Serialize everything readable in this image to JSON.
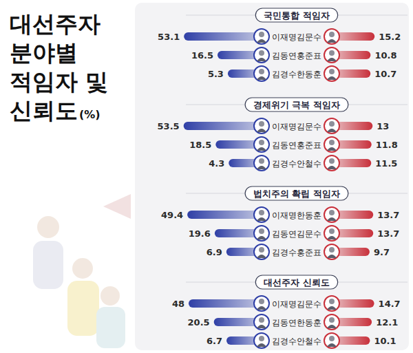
{
  "header": {
    "title_lines": [
      "대선주자",
      "분야별",
      "적임자 및",
      "신뢰도"
    ],
    "unit": "(%)"
  },
  "chart_data": [
    {
      "type": "bar",
      "orientation": "horizontal",
      "title": "국민통합 적임자",
      "data_labels": true,
      "xlim": [
        0,
        60
      ],
      "series": [
        {
          "categories": [
            "이재명",
            "김동연",
            "김경수"
          ],
          "values": [
            53.1,
            16.5,
            5.3
          ],
          "color": "#2f3fa6"
        },
        {
          "categories": [
            "김문수",
            "홍준표",
            "한동훈"
          ],
          "values": [
            15.2,
            10.8,
            10.7
          ],
          "color": "#c8303b"
        }
      ]
    },
    {
      "type": "bar",
      "orientation": "horizontal",
      "title": "경제위기 극복 적임자",
      "data_labels": true,
      "xlim": [
        0,
        60
      ],
      "series": [
        {
          "categories": [
            "이재명",
            "김동연",
            "김경수"
          ],
          "values": [
            53.5,
            18.5,
            4.3
          ],
          "color": "#2f3fa6"
        },
        {
          "categories": [
            "김문수",
            "홍준표",
            "안철수"
          ],
          "values": [
            13.0,
            11.8,
            11.5
          ],
          "color": "#c8303b"
        }
      ]
    },
    {
      "type": "bar",
      "orientation": "horizontal",
      "title": "법치주의 확립 적임자",
      "data_labels": true,
      "xlim": [
        0,
        60
      ],
      "series": [
        {
          "categories": [
            "이재명",
            "김동연",
            "김경수"
          ],
          "values": [
            49.4,
            19.6,
            6.9
          ],
          "color": "#2f3fa6"
        },
        {
          "categories": [
            "한동훈",
            "김문수",
            "홍준표"
          ],
          "values": [
            13.7,
            13.7,
            9.7
          ],
          "color": "#c8303b"
        }
      ]
    },
    {
      "type": "bar",
      "orientation": "horizontal",
      "title": "대선주자 신뢰도",
      "data_labels": true,
      "xlim": [
        0,
        60
      ],
      "series": [
        {
          "categories": [
            "이재명",
            "김동연",
            "김경수"
          ],
          "values": [
            48.0,
            20.5,
            6.7
          ],
          "color": "#2f3fa6"
        },
        {
          "categories": [
            "김문수",
            "한동훈",
            "안철수"
          ],
          "values": [
            14.7,
            12.1,
            10.1
          ],
          "color": "#c8303b"
        }
      ]
    }
  ]
}
